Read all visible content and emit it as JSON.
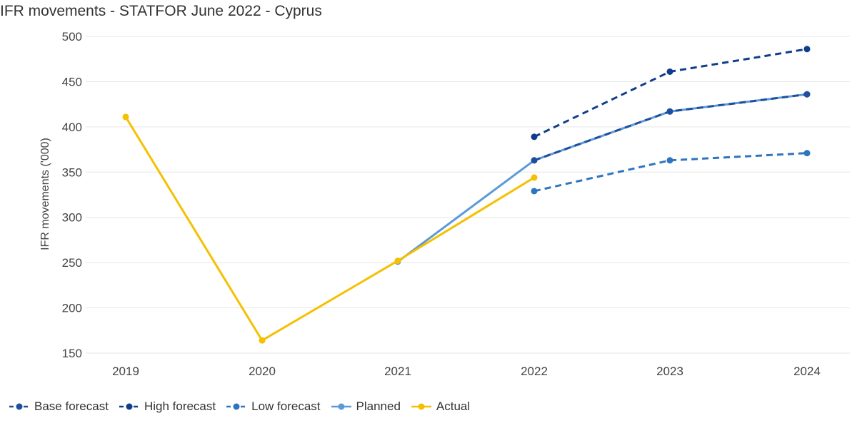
{
  "chart_data": {
    "type": "line",
    "title": "IFR movements - STATFOR June 2022 - Cyprus",
    "ylabel": "IFR movements ('000)",
    "xlabel": "",
    "categories": [
      "2019",
      "2020",
      "2021",
      "2022",
      "2023",
      "2024"
    ],
    "yticks": [
      "150",
      "200",
      "250",
      "300",
      "350",
      "400",
      "450",
      "500"
    ],
    "ylim": [
      150,
      500
    ],
    "grid": true,
    "legend_position": "bottom-left",
    "series": [
      {
        "name": "Base forecast",
        "color": "#1f4e9c",
        "dashed": true,
        "values": [
          null,
          null,
          null,
          363,
          417,
          436
        ]
      },
      {
        "name": "High forecast",
        "color": "#0f3d8c",
        "dashed": true,
        "values": [
          null,
          null,
          null,
          389,
          461,
          486
        ]
      },
      {
        "name": "Low forecast",
        "color": "#2e75c0",
        "dashed": true,
        "values": [
          null,
          null,
          null,
          329,
          363,
          371
        ]
      },
      {
        "name": "Planned",
        "color": "#5b9bd5",
        "dashed": false,
        "values": [
          null,
          null,
          251,
          363,
          417,
          436
        ]
      },
      {
        "name": "Actual",
        "color": "#f5c000",
        "dashed": false,
        "values": [
          411,
          164,
          252,
          344,
          null,
          null
        ]
      }
    ]
  }
}
